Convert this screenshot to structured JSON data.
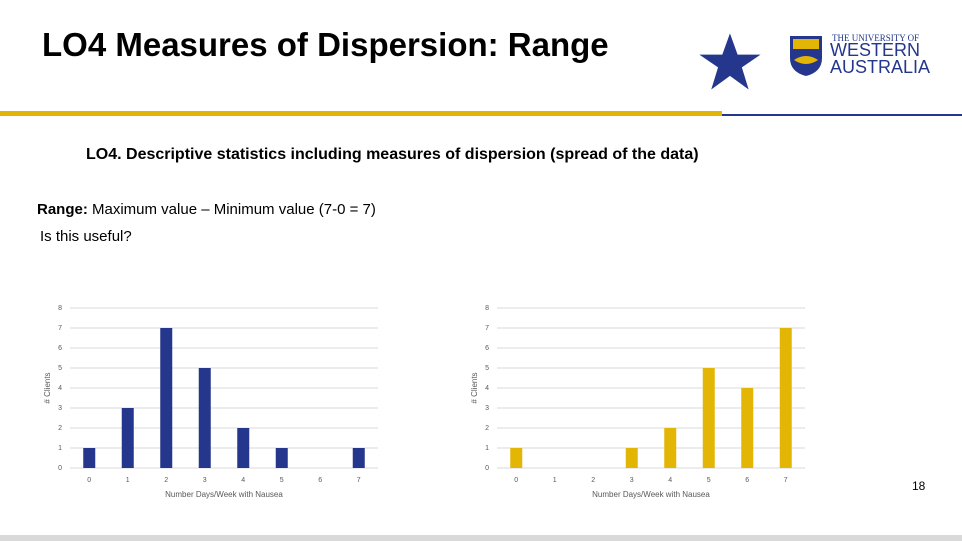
{
  "header": {
    "title": "LO4 Measures of Dispersion: Range",
    "logo": {
      "line1": "THE UNIVERSITY OF",
      "line2": "WESTERN",
      "line3": "AUSTRALIA"
    }
  },
  "body": {
    "subtitle": "LO4. Descriptive statistics including measures of dispersion (spread of the data)",
    "range_term": "Range:",
    "range_text": " Maximum value – Minimum value (7-0 = 7)",
    "question": "Is this useful?"
  },
  "chart_data": [
    {
      "type": "bar",
      "categories": [
        "0",
        "1",
        "2",
        "3",
        "4",
        "5",
        "6",
        "7"
      ],
      "values": [
        1,
        3,
        7,
        5,
        2,
        1,
        0,
        1
      ],
      "color": "#24378c",
      "xlabel": "Number Days/Week with Nausea",
      "ylabel": "# Clients",
      "ylim": [
        0,
        8
      ],
      "yticks": [
        0,
        1,
        2,
        3,
        4,
        5,
        6,
        7,
        8
      ],
      "grid": true
    },
    {
      "type": "bar",
      "categories": [
        "0",
        "1",
        "2",
        "3",
        "4",
        "5",
        "6",
        "7"
      ],
      "values": [
        1,
        0,
        0,
        1,
        2,
        5,
        4,
        7
      ],
      "color": "#e3b505",
      "xlabel": "Number Days/Week with Nausea",
      "ylabel": "# Clients",
      "ylim": [
        0,
        8
      ],
      "yticks": [
        0,
        1,
        2,
        3,
        4,
        5,
        6,
        7,
        8
      ],
      "grid": true
    }
  ],
  "page_number": "18"
}
